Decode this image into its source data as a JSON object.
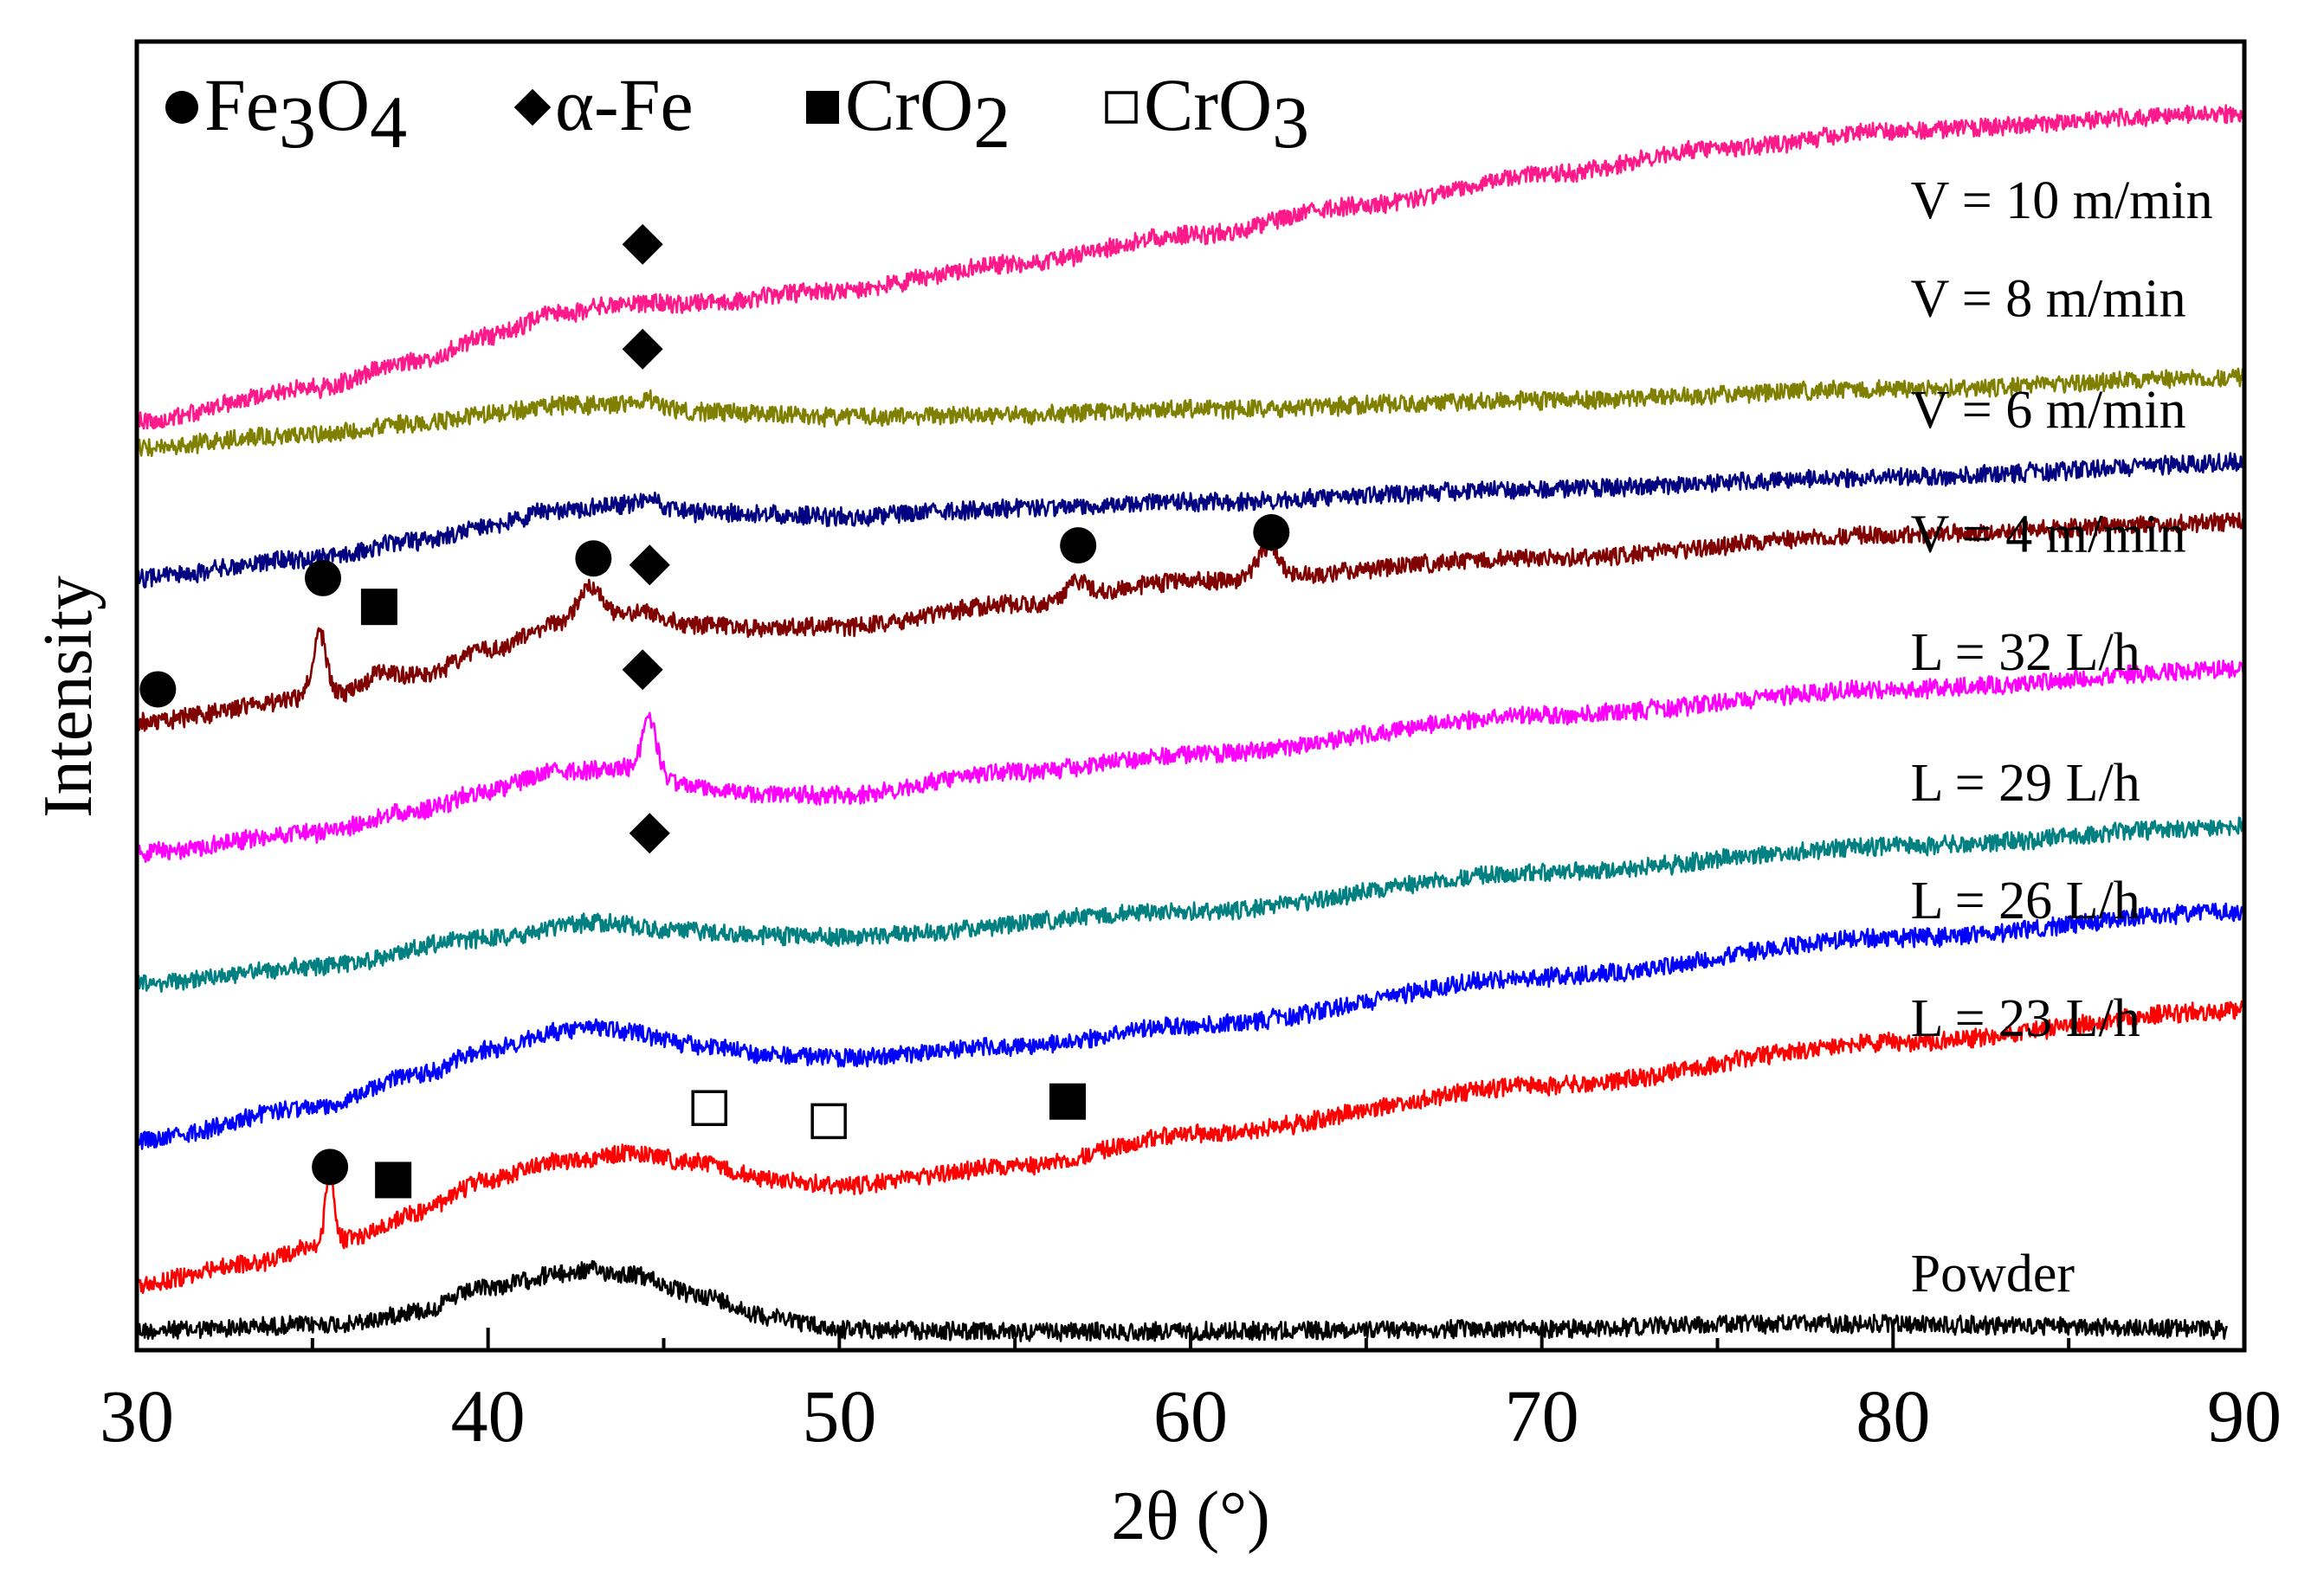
{
  "chart_data": {
    "type": "line",
    "title": "",
    "xlabel": "2θ (°)",
    "ylabel": "Intensity",
    "xlim": [
      30,
      90
    ],
    "ylim": [
      0,
      100
    ],
    "xticks": [
      30,
      40,
      50,
      60,
      70,
      80,
      90
    ],
    "xtick_labels": [
      "30",
      "40",
      "50",
      "60",
      "70",
      "80",
      "90"
    ],
    "grid": false,
    "legend": {
      "position": "top-left",
      "entries": [
        {
          "symbol": "circle",
          "base": "Fe",
          "sub1": "3",
          "mid": "O",
          "sub2": "4"
        },
        {
          "symbol": "diamond",
          "base": "α-Fe",
          "sub1": "",
          "mid": "",
          "sub2": ""
        },
        {
          "symbol": "filled-square",
          "base": "CrO",
          "sub1": "2",
          "mid": "",
          "sub2": ""
        },
        {
          "symbol": "open-square",
          "base": "CrO",
          "sub1": "3",
          "mid": "",
          "sub2": ""
        }
      ]
    },
    "series": [
      {
        "name": "Powder",
        "color": "#000000",
        "x_end": 89.5,
        "label_x": 80.5,
        "label_y": 4.5,
        "points": [
          [
            30,
            1.5
          ],
          [
            36,
            2
          ],
          [
            38,
            3
          ],
          [
            40,
            4.8
          ],
          [
            42,
            5.8
          ],
          [
            43,
            6.1
          ],
          [
            44,
            5.8
          ],
          [
            46,
            4.2
          ],
          [
            48,
            2.6
          ],
          [
            50,
            1.6
          ],
          [
            55,
            1.4
          ],
          [
            70,
            1.6
          ],
          [
            75,
            2
          ],
          [
            80,
            2
          ],
          [
            85,
            1.8
          ],
          [
            89.5,
            1.6
          ]
        ],
        "peaks": []
      },
      {
        "name": "L = 23 L/h",
        "color": "#ff0000",
        "x_end": 90,
        "label_x": 80.5,
        "label_y": 24,
        "points": [
          [
            30,
            5
          ],
          [
            33,
            6.5
          ],
          [
            36,
            8.5
          ],
          [
            38,
            10.5
          ],
          [
            40,
            13
          ],
          [
            42,
            14.5
          ],
          [
            44,
            15
          ],
          [
            46,
            14.3
          ],
          [
            48,
            13
          ],
          [
            50,
            12.6
          ],
          [
            55,
            14
          ],
          [
            60,
            16.5
          ],
          [
            70,
            20.2
          ],
          [
            80,
            23.5
          ],
          [
            90,
            26
          ]
        ],
        "peaks": [
          [
            35.5,
            5.5,
            0.12
          ]
        ]
      },
      {
        "name": "L = 26 L/h",
        "color": "#0000ff",
        "x_end": 90,
        "label_x": 80.5,
        "label_y": 33,
        "points": [
          [
            30,
            16
          ],
          [
            35,
            18.5
          ],
          [
            38,
            21
          ],
          [
            40,
            23
          ],
          [
            42,
            24.3
          ],
          [
            43,
            24.7
          ],
          [
            44,
            24.3
          ],
          [
            46,
            23.3
          ],
          [
            48,
            22.6
          ],
          [
            50,
            22.3
          ],
          [
            55,
            23.2
          ],
          [
            60,
            24.8
          ],
          [
            70,
            28.5
          ],
          [
            80,
            31.5
          ],
          [
            90,
            33.5
          ]
        ],
        "peaks": []
      },
      {
        "name": "L = 29 L/h",
        "color": "#008080",
        "x_end": 90,
        "label_x": 80.5,
        "label_y": 42,
        "points": [
          [
            30,
            28
          ],
          [
            35,
            29.3
          ],
          [
            40,
            31.5
          ],
          [
            43,
            32.7
          ],
          [
            45,
            32.2
          ],
          [
            48,
            31.7
          ],
          [
            50,
            31.6
          ],
          [
            60,
            33.5
          ],
          [
            70,
            36.5
          ],
          [
            80,
            38.5
          ],
          [
            90,
            40
          ]
        ],
        "peaks": []
      },
      {
        "name": "L = 32 L/h",
        "color": "#ff00ff",
        "x_end": 90,
        "label_x": 80.5,
        "label_y": 52,
        "points": [
          [
            30,
            38
          ],
          [
            35,
            39.5
          ],
          [
            38,
            41.2
          ],
          [
            40,
            42.8
          ],
          [
            42,
            44.2
          ],
          [
            44,
            44.5
          ],
          [
            46,
            43
          ],
          [
            48,
            42.4
          ],
          [
            50,
            42.4
          ],
          [
            55,
            44.2
          ],
          [
            60,
            45.5
          ],
          [
            70,
            48.5
          ],
          [
            80,
            50.5
          ],
          [
            90,
            52
          ]
        ],
        "peaks": [
          [
            44.6,
            4,
            0.2
          ]
        ]
      },
      {
        "name": "V = 4 m/min",
        "color": "#800000",
        "x_end": 90,
        "label_x": 80.5,
        "label_y": 61,
        "points": [
          [
            30,
            48
          ],
          [
            35,
            49.8
          ],
          [
            38,
            51.5
          ],
          [
            40,
            53.5
          ],
          [
            42,
            55.5
          ],
          [
            44,
            56.2
          ],
          [
            46,
            55.4
          ],
          [
            48,
            55.2
          ],
          [
            50,
            55.3
          ],
          [
            55,
            57
          ],
          [
            60,
            58.8
          ],
          [
            70,
            60.5
          ],
          [
            80,
            62.3
          ],
          [
            90,
            63.3
          ]
        ],
        "peaks": [
          [
            35.2,
            5,
            0.2
          ],
          [
            36.9,
            0.8,
            0.35
          ],
          [
            42.9,
            2.5,
            0.35
          ],
          [
            44.6,
            0.5,
            0.25
          ],
          [
            56.8,
            1.3,
            0.3
          ],
          [
            62.2,
            2.3,
            0.3
          ]
        ]
      },
      {
        "name": "V = 6 m/min",
        "color": "#000080",
        "x_end": 90,
        "label_x": 80.5,
        "label_y": 70.5,
        "points": [
          [
            30,
            59
          ],
          [
            35,
            60.5
          ],
          [
            38,
            61.8
          ],
          [
            40,
            63
          ],
          [
            42,
            64.2
          ],
          [
            44,
            64.6
          ],
          [
            46,
            64
          ],
          [
            50,
            63.7
          ],
          [
            55,
            64.3
          ],
          [
            60,
            64.8
          ],
          [
            70,
            65.8
          ],
          [
            80,
            66.7
          ],
          [
            90,
            67.8
          ]
        ],
        "peaks": [
          [
            44.6,
            0.7,
            0.25
          ]
        ]
      },
      {
        "name": "V = 8 m/min",
        "color": "#808000",
        "x_end": 90,
        "label_x": 80.5,
        "label_y": 79,
        "points": [
          [
            30,
            69
          ],
          [
            35,
            70
          ],
          [
            38,
            70.8
          ],
          [
            40,
            71.5
          ],
          [
            42,
            72.2
          ],
          [
            44,
            72.3
          ],
          [
            46,
            71.7
          ],
          [
            50,
            71.3
          ],
          [
            55,
            71.5
          ],
          [
            60,
            71.9
          ],
          [
            70,
            72.6
          ],
          [
            80,
            73.4
          ],
          [
            90,
            74.3
          ]
        ],
        "peaks": [
          [
            44.6,
            0.6,
            0.2
          ]
        ]
      },
      {
        "name": "V = 10 m/min",
        "color": "#ff1a8c",
        "x_end": 90,
        "label_x": 80.5,
        "label_y": 86.5,
        "points": [
          [
            30,
            71
          ],
          [
            35,
            73.5
          ],
          [
            38,
            75.6
          ],
          [
            40,
            77.5
          ],
          [
            42,
            79.2
          ],
          [
            44,
            80
          ],
          [
            46,
            80
          ],
          [
            50,
            81
          ],
          [
            55,
            83
          ],
          [
            60,
            85.2
          ],
          [
            65,
            87.5
          ],
          [
            70,
            89.8
          ],
          [
            75,
            91.8
          ],
          [
            80,
            93.2
          ],
          [
            90,
            94.5
          ]
        ],
        "peaks": []
      }
    ],
    "markers": [
      {
        "symbol": "circle",
        "x": 30.6,
        "y": 50.5
      },
      {
        "symbol": "circle",
        "x": 35.3,
        "y": 59
      },
      {
        "symbol": "filled-square",
        "x": 36.9,
        "y": 56.8
      },
      {
        "symbol": "circle",
        "x": 43.0,
        "y": 60.5
      },
      {
        "symbol": "diamond",
        "x": 44.6,
        "y": 60
      },
      {
        "symbol": "circle",
        "x": 56.8,
        "y": 61.5
      },
      {
        "symbol": "circle",
        "x": 62.3,
        "y": 62.5
      },
      {
        "symbol": "diamond",
        "x": 44.4,
        "y": 84.5
      },
      {
        "symbol": "diamond",
        "x": 44.4,
        "y": 76.5
      },
      {
        "symbol": "diamond",
        "x": 44.4,
        "y": 52
      },
      {
        "symbol": "diamond",
        "x": 44.6,
        "y": 39.5
      },
      {
        "symbol": "circle",
        "x": 35.5,
        "y": 14
      },
      {
        "symbol": "filled-square",
        "x": 37.3,
        "y": 13
      },
      {
        "symbol": "open-square",
        "x": 46.3,
        "y": 18.5
      },
      {
        "symbol": "open-square",
        "x": 49.7,
        "y": 17.5
      },
      {
        "symbol": "filled-square",
        "x": 56.5,
        "y": 19
      }
    ]
  }
}
